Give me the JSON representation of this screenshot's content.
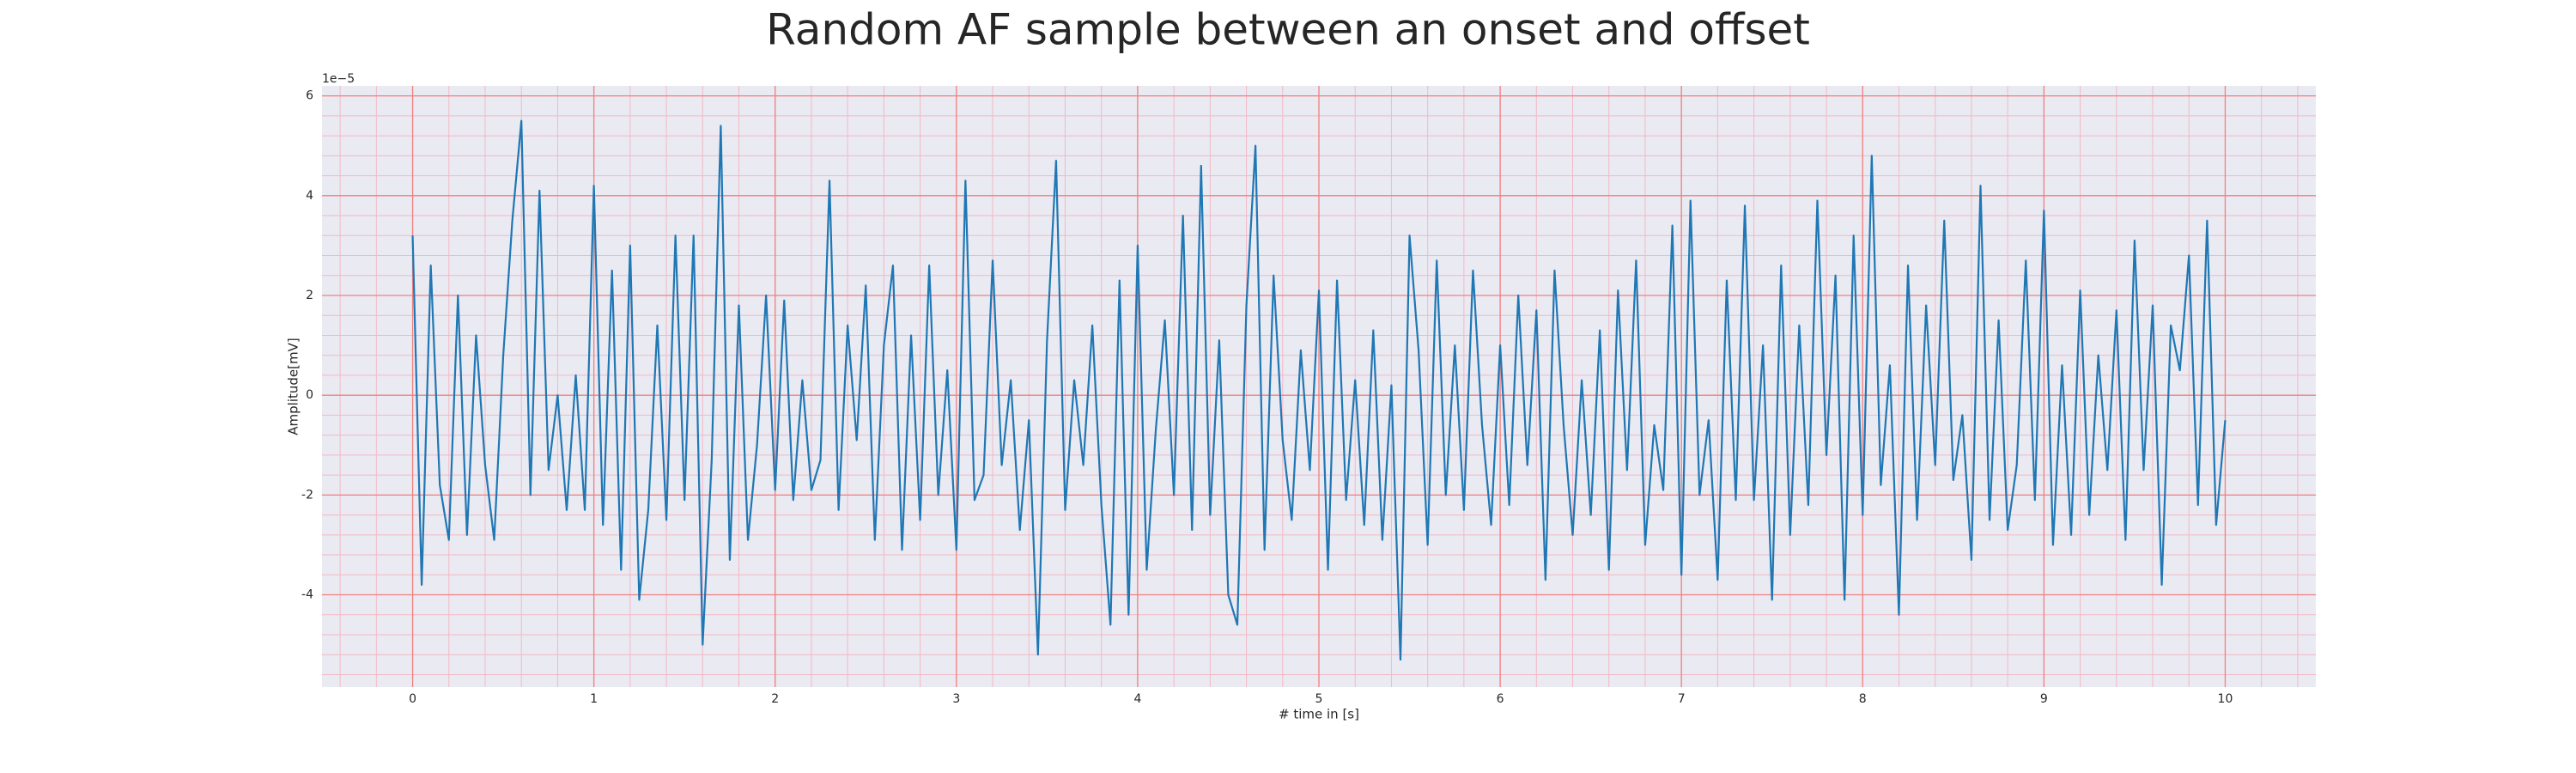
{
  "chart_data": {
    "type": "line",
    "title": "Random AF sample between an onset and offset",
    "x_label": "# time in [s]",
    "y_label": "Amplitude[mV]",
    "y_offset_text": "1e−5",
    "xlim": [
      -0.5,
      10.5
    ],
    "ylim": [
      -5.85,
      6.2
    ],
    "xticks": [
      0,
      1,
      2,
      3,
      4,
      5,
      6,
      7,
      8,
      9,
      10
    ],
    "yticks": [
      -4,
      -2,
      0,
      2,
      4,
      6
    ],
    "grid": true,
    "minor_grid": true,
    "x": [
      0,
      0.05,
      0.1,
      0.15,
      0.2,
      0.25,
      0.3,
      0.35,
      0.4,
      0.45,
      0.5,
      0.55,
      0.6,
      0.65,
      0.7,
      0.75,
      0.8,
      0.85,
      0.9,
      0.95,
      1,
      1.05,
      1.1,
      1.15,
      1.2,
      1.25,
      1.3,
      1.35,
      1.4,
      1.45,
      1.5,
      1.55,
      1.6,
      1.65,
      1.7,
      1.75,
      1.8,
      1.85,
      1.9,
      1.95,
      2,
      2.05,
      2.1,
      2.15,
      2.2,
      2.25,
      2.3,
      2.35,
      2.4,
      2.45,
      2.5,
      2.55,
      2.6,
      2.65,
      2.7,
      2.75,
      2.8,
      2.85,
      2.9,
      2.95,
      3,
      3.05,
      3.1,
      3.15,
      3.2,
      3.25,
      3.3,
      3.35,
      3.4,
      3.45,
      3.5,
      3.55,
      3.6,
      3.65,
      3.7,
      3.75,
      3.8,
      3.85,
      3.9,
      3.95,
      4,
      4.05,
      4.1,
      4.15,
      4.2,
      4.25,
      4.3,
      4.35,
      4.4,
      4.45,
      4.5,
      4.55,
      4.6,
      4.65,
      4.7,
      4.75,
      4.8,
      4.85,
      4.9,
      4.95,
      5,
      5.05,
      5.1,
      5.15,
      5.2,
      5.25,
      5.3,
      5.35,
      5.4,
      5.45,
      5.5,
      5.55,
      5.6,
      5.65,
      5.7,
      5.75,
      5.8,
      5.85,
      5.9,
      5.95,
      6,
      6.05,
      6.1,
      6.15,
      6.2,
      6.25,
      6.3,
      6.35,
      6.4,
      6.45,
      6.5,
      6.55,
      6.6,
      6.65,
      6.7,
      6.75,
      6.8,
      6.85,
      6.9,
      6.95,
      7,
      7.05,
      7.1,
      7.15,
      7.2,
      7.25,
      7.3,
      7.35,
      7.4,
      7.45,
      7.5,
      7.55,
      7.6,
      7.65,
      7.7,
      7.75,
      7.8,
      7.85,
      7.9,
      7.95,
      8,
      8.05,
      8.1,
      8.15,
      8.2,
      8.25,
      8.3,
      8.35,
      8.4,
      8.45,
      8.5,
      8.55,
      8.6,
      8.65,
      8.7,
      8.75,
      8.8,
      8.85,
      8.9,
      8.95,
      9,
      9.05,
      9.1,
      9.15,
      9.2,
      9.25,
      9.3,
      9.35,
      9.4,
      9.45,
      9.5,
      9.55,
      9.6,
      9.65,
      9.7,
      9.75,
      9.8,
      9.85,
      9.9,
      9.95,
      10
    ],
    "series": [
      {
        "color": "#1f77b4",
        "values": [
          3.2,
          -3.8,
          2.6,
          -1.8,
          -2.9,
          2.0,
          -2.8,
          1.2,
          -1.4,
          -2.9,
          0.8,
          3.5,
          5.5,
          -2.0,
          4.1,
          -1.5,
          0.0,
          -2.3,
          0.4,
          -2.3,
          4.2,
          -2.6,
          2.5,
          -3.5,
          3.0,
          -4.1,
          -2.3,
          1.4,
          -2.5,
          3.2,
          -2.1,
          3.2,
          -5.0,
          -1.3,
          5.4,
          -3.3,
          1.8,
          -2.9,
          -1.0,
          2.0,
          -1.9,
          1.9,
          -2.1,
          0.3,
          -1.9,
          -1.3,
          4.3,
          -2.3,
          1.4,
          -0.9,
          2.2,
          -2.9,
          1.0,
          2.6,
          -3.1,
          1.2,
          -2.5,
          2.6,
          -2.0,
          0.5,
          -3.1,
          4.3,
          -2.1,
          -1.6,
          2.7,
          -1.4,
          0.3,
          -2.7,
          -0.5,
          -5.2,
          1.1,
          4.7,
          -2.3,
          0.3,
          -1.4,
          1.4,
          -2.2,
          -4.6,
          2.3,
          -4.4,
          3.0,
          -3.5,
          -0.7,
          1.5,
          -2.0,
          3.6,
          -2.7,
          4.6,
          -2.4,
          1.1,
          -4.0,
          -4.6,
          1.8,
          5.0,
          -3.1,
          2.4,
          -0.9,
          -2.5,
          0.9,
          -1.5,
          2.1,
          -3.5,
          2.3,
          -2.1,
          0.3,
          -2.6,
          1.3,
          -2.9,
          0.2,
          -5.3,
          3.2,
          0.9,
          -3.0,
          2.7,
          -2.0,
          1.0,
          -2.3,
          2.5,
          -0.6,
          -2.6,
          1.0,
          -2.2,
          2.0,
          -1.4,
          1.7,
          -3.7,
          2.5,
          -0.6,
          -2.8,
          0.3,
          -2.4,
          1.3,
          -3.5,
          2.1,
          -1.5,
          2.7,
          -3.0,
          -0.6,
          -1.9,
          3.4,
          -3.6,
          3.9,
          -2.0,
          -0.5,
          -3.7,
          2.3,
          -2.1,
          3.8,
          -2.1,
          1.0,
          -4.1,
          2.6,
          -2.8,
          1.4,
          -2.2,
          3.9,
          -1.2,
          2.4,
          -4.1,
          3.2,
          -2.4,
          4.8,
          -1.8,
          0.6,
          -4.4,
          2.6,
          -2.5,
          1.8,
          -1.4,
          3.5,
          -1.7,
          -0.4,
          -3.3,
          4.2,
          -2.5,
          1.5,
          -2.7,
          -1.4,
          2.7,
          -2.1,
          3.7,
          -3.0,
          0.6,
          -2.8,
          2.1,
          -2.4,
          0.8,
          -1.5,
          1.7,
          -2.9,
          3.1,
          -1.5,
          1.8,
          -3.8,
          1.4,
          0.5,
          2.8,
          -2.2,
          3.5,
          -2.6,
          -0.5
        ]
      }
    ]
  }
}
